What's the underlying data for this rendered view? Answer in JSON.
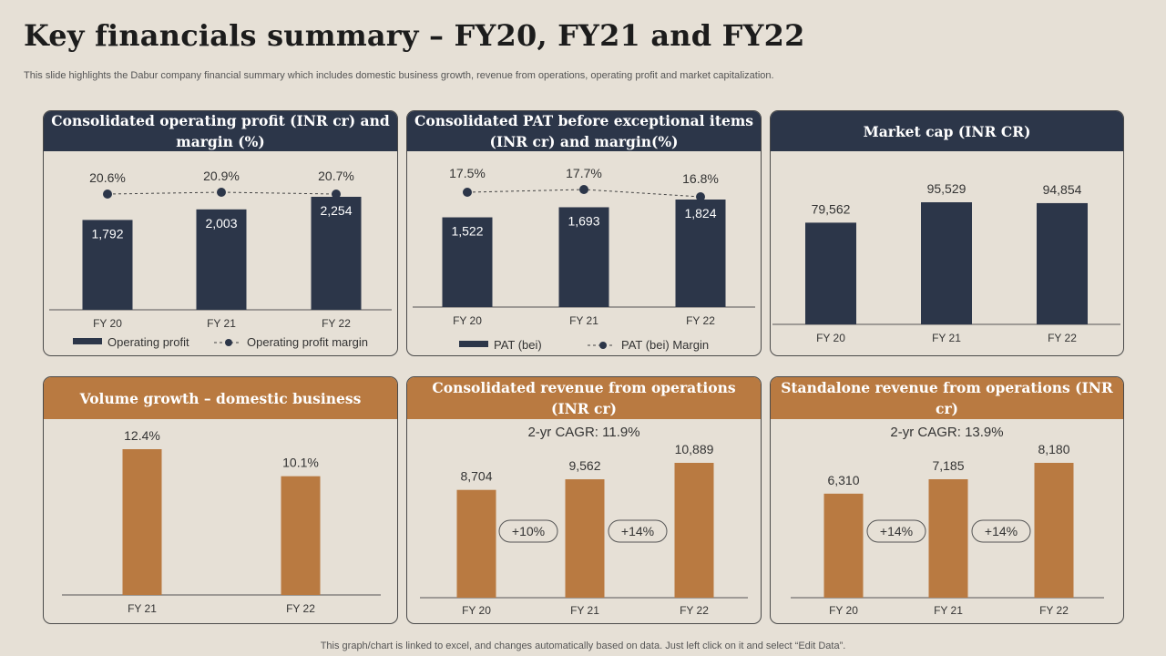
{
  "page": {
    "title": "Key financials summary – FY20, FY21 and FY22",
    "subtitle": "This slide highlights the Dabur company financial summary which includes domestic business growth, revenue from operations, operating profit and market capitalization.",
    "footer": "This graph/chart is linked to excel,  and changes automatically based on data. Just left click on it and select “Edit Data”."
  },
  "colors": {
    "navy": "#2C3649",
    "brown": "#B97A41",
    "background": "#E6E0D6"
  },
  "chart_data": [
    {
      "type": "bar",
      "title": "Consolidated operating profit (INR cr) and margin (%)",
      "categories": [
        "FY 20",
        "FY 21",
        "FY 22"
      ],
      "series": [
        {
          "name": "Operating profit",
          "values": [
            1792,
            2003,
            2254
          ],
          "labels": [
            "1,792",
            "2,003",
            "2,254"
          ]
        },
        {
          "name": "Operating profit margin",
          "values": [
            20.6,
            20.9,
            20.7
          ],
          "labels": [
            "20.6%",
            "20.9%",
            "20.7%"
          ]
        }
      ],
      "ylim": [
        0,
        2500
      ],
      "legend": [
        "Operating profit",
        "Operating profit margin"
      ]
    },
    {
      "type": "bar",
      "title": "Consolidated PAT before exceptional items (INR cr) and margin(%)",
      "categories": [
        "FY 20",
        "FY 21",
        "FY 22"
      ],
      "series": [
        {
          "name": "PAT (bei)",
          "values": [
            1522,
            1693,
            1824
          ],
          "labels": [
            "1,522",
            "1,693",
            "1,824"
          ]
        },
        {
          "name": "PAT (bei) Margin",
          "values": [
            17.5,
            17.7,
            16.8
          ],
          "labels": [
            "17.5%",
            "17.7%",
            "16.8%"
          ]
        }
      ],
      "ylim": [
        0,
        2000
      ],
      "legend": [
        "PAT (bei)",
        "PAT (bei) Margin"
      ]
    },
    {
      "type": "bar",
      "title": "Market cap (INR CR)",
      "categories": [
        "FY 20",
        "FY 21",
        "FY 22"
      ],
      "values": [
        79562,
        95529,
        94854
      ],
      "labels": [
        "79,562",
        "95,529",
        "94,854"
      ],
      "ylim": [
        0,
        100000
      ]
    },
    {
      "type": "bar",
      "title": "Volume growth – domestic business",
      "categories": [
        "FY 21",
        "FY 22"
      ],
      "values": [
        12.4,
        10.1
      ],
      "labels": [
        "12.4%",
        "10.1%"
      ],
      "ylim": [
        0,
        13
      ]
    },
    {
      "type": "bar",
      "title": "Consolidated revenue from operations (INR cr)",
      "annotation": "2-yr CAGR: 11.9%",
      "categories": [
        "FY 20",
        "FY 21",
        "FY 22"
      ],
      "values": [
        8704,
        9562,
        10889
      ],
      "labels": [
        "8,704",
        "9,562",
        "10,889"
      ],
      "growth": [
        "+10%",
        "+14%"
      ],
      "ylim": [
        0,
        11000
      ]
    },
    {
      "type": "bar",
      "title": "Standalone revenue from operations (INR cr)",
      "annotation": "2-yr CAGR: 13.9%",
      "categories": [
        "FY 20",
        "FY 21",
        "FY 22"
      ],
      "values": [
        6310,
        7185,
        8180
      ],
      "labels": [
        "6,310",
        "7,185",
        "8,180"
      ],
      "growth": [
        "+14%",
        "+14%"
      ],
      "ylim": [
        0,
        10000
      ]
    }
  ]
}
